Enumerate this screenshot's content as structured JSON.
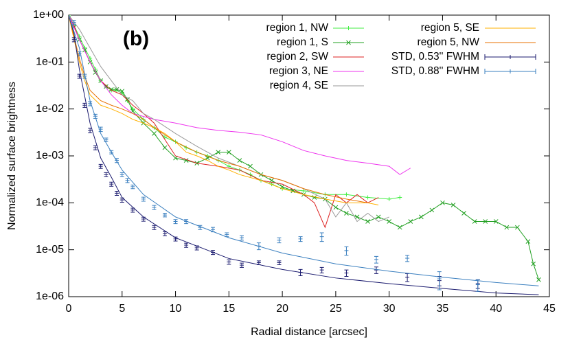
{
  "chart_data": {
    "type": "line",
    "annotation": "(b)",
    "x_label": "Radial distance [arcsec]",
    "y_label": "Normalized surface brightness",
    "log_y": true,
    "xlim": [
      0,
      45
    ],
    "ylim": [
      1e-06,
      1
    ],
    "xticks": [
      0,
      5,
      10,
      15,
      20,
      25,
      30,
      35,
      40,
      45
    ],
    "yticks": [
      {
        "value": 1,
        "label": "1e+00"
      },
      {
        "value": 0.1,
        "label": "1e-01"
      },
      {
        "value": 0.01,
        "label": "1e-02"
      },
      {
        "value": 0.001,
        "label": "1e-03"
      },
      {
        "value": 0.0001,
        "label": "1e-04"
      },
      {
        "value": 1e-05,
        "label": "1e-05"
      },
      {
        "value": 1e-06,
        "label": "1e-06"
      }
    ],
    "series": [
      {
        "name": "region 1, NW",
        "color": "#44ee44",
        "marker": "+",
        "x": [
          0,
          0.5,
          1,
          1.5,
          2,
          2.5,
          3,
          3.5,
          4,
          4.5,
          5,
          5.5,
          6,
          7,
          8,
          9,
          10,
          11,
          12,
          13,
          14,
          15,
          16,
          17,
          18,
          19,
          20,
          22,
          24,
          26,
          28,
          30,
          31
        ],
        "values": [
          1,
          0.6,
          0.35,
          0.2,
          0.12,
          0.07,
          0.04,
          0.03,
          0.025,
          0.025,
          0.022,
          0.015,
          0.01,
          0.006,
          0.004,
          0.0025,
          0.002,
          0.0015,
          0.0012,
          0.001,
          0.0008,
          0.0006,
          0.0005,
          0.0004,
          0.0003,
          0.00025,
          0.0002,
          0.00018,
          0.00015,
          0.00015,
          0.00013,
          0.00012,
          0.00013
        ]
      },
      {
        "name": "region 1, S",
        "color": "#22a022",
        "marker": "x",
        "x": [
          0,
          0.5,
          1,
          1.5,
          2,
          2.5,
          3,
          3.5,
          4,
          4.5,
          5,
          5.5,
          6,
          7,
          8,
          9,
          10,
          11,
          12,
          13,
          14,
          15,
          16,
          17,
          18,
          19,
          20,
          21,
          22,
          23,
          24,
          25,
          26,
          27,
          28,
          29,
          30,
          31,
          32,
          33,
          34,
          35,
          36,
          37,
          38,
          39,
          40,
          41,
          42,
          43,
          43.5,
          44
        ],
        "values": [
          1,
          0.55,
          0.3,
          0.18,
          0.1,
          0.06,
          0.04,
          0.03,
          0.026,
          0.026,
          0.024,
          0.016,
          0.009,
          0.005,
          0.003,
          0.0015,
          0.0009,
          0.0008,
          0.0007,
          0.0009,
          0.0012,
          0.0012,
          0.0008,
          0.0006,
          0.0004,
          0.0003,
          0.00022,
          0.00018,
          0.00015,
          0.00013,
          0.00012,
          8e-05,
          6e-05,
          5e-05,
          4e-05,
          5e-05,
          4e-05,
          3e-05,
          4e-05,
          5e-05,
          7e-05,
          0.0001,
          9e-05,
          6e-05,
          4e-05,
          4e-05,
          4e-05,
          3e-05,
          3e-05,
          1.5e-05,
          5e-06,
          2.3e-06
        ]
      },
      {
        "name": "region 2, SW",
        "color": "#dd2222",
        "x": [
          0,
          0.5,
          1,
          2,
          3,
          4,
          5,
          6,
          7,
          8,
          10,
          12,
          14,
          16,
          18,
          20,
          22,
          23,
          24,
          25,
          26,
          27,
          28,
          29
        ],
        "values": [
          1,
          0.6,
          0.3,
          0.1,
          0.04,
          0.025,
          0.02,
          0.012,
          0.008,
          0.005,
          0.001,
          0.0007,
          0.0006,
          0.0005,
          0.0003,
          0.00025,
          0.00015,
          0.0001,
          3e-05,
          0.00015,
          0.0001,
          0.00015,
          0.0001,
          0.00013
        ]
      },
      {
        "name": "region 3, NE",
        "color": "#ee33ee",
        "x": [
          0,
          1,
          2,
          3,
          4,
          5,
          6,
          8,
          10,
          12,
          14,
          16,
          18,
          20,
          22,
          24,
          26,
          28,
          30,
          31,
          32
        ],
        "values": [
          1,
          0.3,
          0.1,
          0.04,
          0.02,
          0.012,
          0.008,
          0.006,
          0.005,
          0.004,
          0.0035,
          0.0032,
          0.0028,
          0.002,
          0.0013,
          0.001,
          0.0008,
          0.0007,
          0.0006,
          0.0004,
          0.00055
        ]
      },
      {
        "name": "region 4, SE",
        "color": "#999999",
        "x": [
          0,
          1,
          2,
          3,
          4,
          5,
          6,
          7,
          8,
          10,
          12,
          14,
          16,
          18,
          20,
          22,
          24,
          25,
          26,
          27,
          28,
          29,
          30
        ],
        "values": [
          1,
          0.5,
          0.2,
          0.08,
          0.04,
          0.02,
          0.015,
          0.008,
          0.006,
          0.003,
          0.0016,
          0.0009,
          0.0006,
          0.0004,
          0.0003,
          0.0002,
          0.00012,
          5e-05,
          0.0001,
          4e-05,
          6e-05,
          4e-05,
          5e-05
        ]
      },
      {
        "name": "region 5, SE",
        "color": "#ffb000",
        "x": [
          0,
          0.5,
          1,
          1.5,
          2,
          3,
          4,
          5,
          6,
          7,
          8,
          9,
          10,
          11,
          12,
          13,
          14,
          15,
          16,
          18,
          20,
          22,
          24,
          26,
          28,
          29
        ],
        "values": [
          1,
          0.3,
          0.1,
          0.04,
          0.02,
          0.012,
          0.01,
          0.008,
          0.006,
          0.005,
          0.004,
          0.003,
          0.002,
          0.0012,
          0.001,
          0.0008,
          0.0006,
          0.0005,
          0.0004,
          0.0003,
          0.0002,
          0.00015,
          0.00012,
          0.0001,
          0.0001,
          9e-05
        ]
      },
      {
        "name": "region 5, NW",
        "color": "#e87000",
        "x": [
          0,
          0.5,
          1,
          1.5,
          2,
          3,
          4,
          5,
          6,
          7,
          8,
          10,
          12,
          14,
          16,
          18,
          20,
          22,
          24,
          26,
          28
        ],
        "values": [
          1,
          0.35,
          0.12,
          0.05,
          0.025,
          0.015,
          0.012,
          0.01,
          0.008,
          0.006,
          0.004,
          0.002,
          0.0012,
          0.0008,
          0.0006,
          0.0004,
          0.0003,
          0.0002,
          0.00015,
          0.00012,
          0.0001
        ]
      },
      {
        "name": "STD, 0.53'' FWHM",
        "color": "#1a1a6e",
        "marker": "errorbar",
        "x": [
          0.5,
          1,
          1.5,
          2,
          2.5,
          3,
          3.5,
          4,
          4.5,
          5,
          6,
          7,
          8,
          9,
          10,
          11,
          12,
          13.5,
          15,
          16.2,
          17.8,
          19.7,
          21.7,
          23.7,
          26,
          28.8,
          31.7,
          34.7,
          38.3
        ],
        "values": [
          0.3,
          0.05,
          0.012,
          0.0035,
          0.0015,
          0.0006,
          0.0004,
          0.00025,
          0.00016,
          0.000115,
          7e-05,
          4.5e-05,
          3e-05,
          2.2e-05,
          1.7e-05,
          1.25e-05,
          1.1e-05,
          8.8e-06,
          5.5e-06,
          4.7e-06,
          5.3e-06,
          5.3e-06,
          3.3e-06,
          3.7e-06,
          3.2e-06,
          3.7e-06,
          2.6e-06,
          2.2e-06,
          1.9e-06
        ],
        "errors": [
          0.03,
          0.005,
          0.0012,
          0.0004,
          0.00015,
          6e-05,
          4e-05,
          2.5e-05,
          1.6e-05,
          1.2e-05,
          7e-06,
          4.5e-06,
          3e-06,
          2.2e-06,
          1.7e-06,
          1.3e-06,
          1.1e-06,
          9e-07,
          6e-07,
          5e-07,
          5e-07,
          5e-07,
          5e-07,
          5e-07,
          5e-07,
          6e-07,
          5e-07,
          5e-07,
          4e-07
        ],
        "fit_x": [
          0,
          0.5,
          1,
          2,
          3,
          4,
          5,
          7,
          10,
          15,
          20,
          25,
          30,
          35,
          40,
          44
        ],
        "fit_values": [
          1,
          0.4,
          0.07,
          0.005,
          0.0009,
          0.00035,
          0.00013,
          5e-05,
          1.8e-05,
          6.5e-06,
          3.8e-06,
          2.5e-06,
          1.9e-06,
          1.5e-06,
          1.2e-06,
          1.1e-06
        ]
      },
      {
        "name": "STD, 0.88'' FWHM",
        "color": "#3a7fbf",
        "marker": "errorbar",
        "x": [
          0.5,
          1,
          1.5,
          2,
          2.5,
          3,
          3.5,
          4,
          4.5,
          5,
          5.5,
          6,
          7,
          8,
          9,
          10,
          11,
          12.3,
          13.5,
          14.8,
          16.2,
          17.8,
          19.7,
          21.7,
          23.7,
          26,
          28.8,
          31.7,
          34.7,
          38.3
        ],
        "values": [
          0.7,
          0.15,
          0.05,
          0.013,
          0.007,
          0.0037,
          0.0022,
          0.0012,
          0.0008,
          0.0004,
          0.0003,
          0.00022,
          0.00012,
          8e-05,
          5.5e-05,
          4e-05,
          4e-05,
          3e-05,
          2.7e-05,
          2.1e-05,
          1.8e-05,
          1.2e-05,
          1.6e-05,
          1.7e-05,
          1.9e-05,
          9.6e-06,
          6.2e-06,
          6.6e-06,
          2.4e-06,
          1.8e-06
        ],
        "errors": [
          0.07,
          0.015,
          0.005,
          0.0013,
          0.0007,
          0.0004,
          0.0002,
          0.0001,
          8e-05,
          4e-05,
          3e-05,
          2e-05,
          1.2e-05,
          8e-06,
          5e-06,
          4e-06,
          4e-06,
          3e-06,
          3e-06,
          2e-06,
          2e-06,
          2e-06,
          2e-06,
          2e-06,
          4e-06,
          2e-06,
          1e-06,
          1e-06,
          1e-06,
          5e-07
        ],
        "fit_x": [
          0,
          1,
          2,
          3,
          4,
          5,
          7,
          10,
          15,
          20,
          25,
          30,
          35,
          40,
          44
        ],
        "fit_values": [
          1,
          0.2,
          0.015,
          0.003,
          0.0012,
          0.0005,
          0.00015,
          5e-05,
          1.8e-05,
          8.5e-06,
          5e-06,
          3.5e-06,
          2.6e-06,
          2e-06,
          1.7e-06
        ]
      }
    ],
    "legend_position": "upper right"
  }
}
